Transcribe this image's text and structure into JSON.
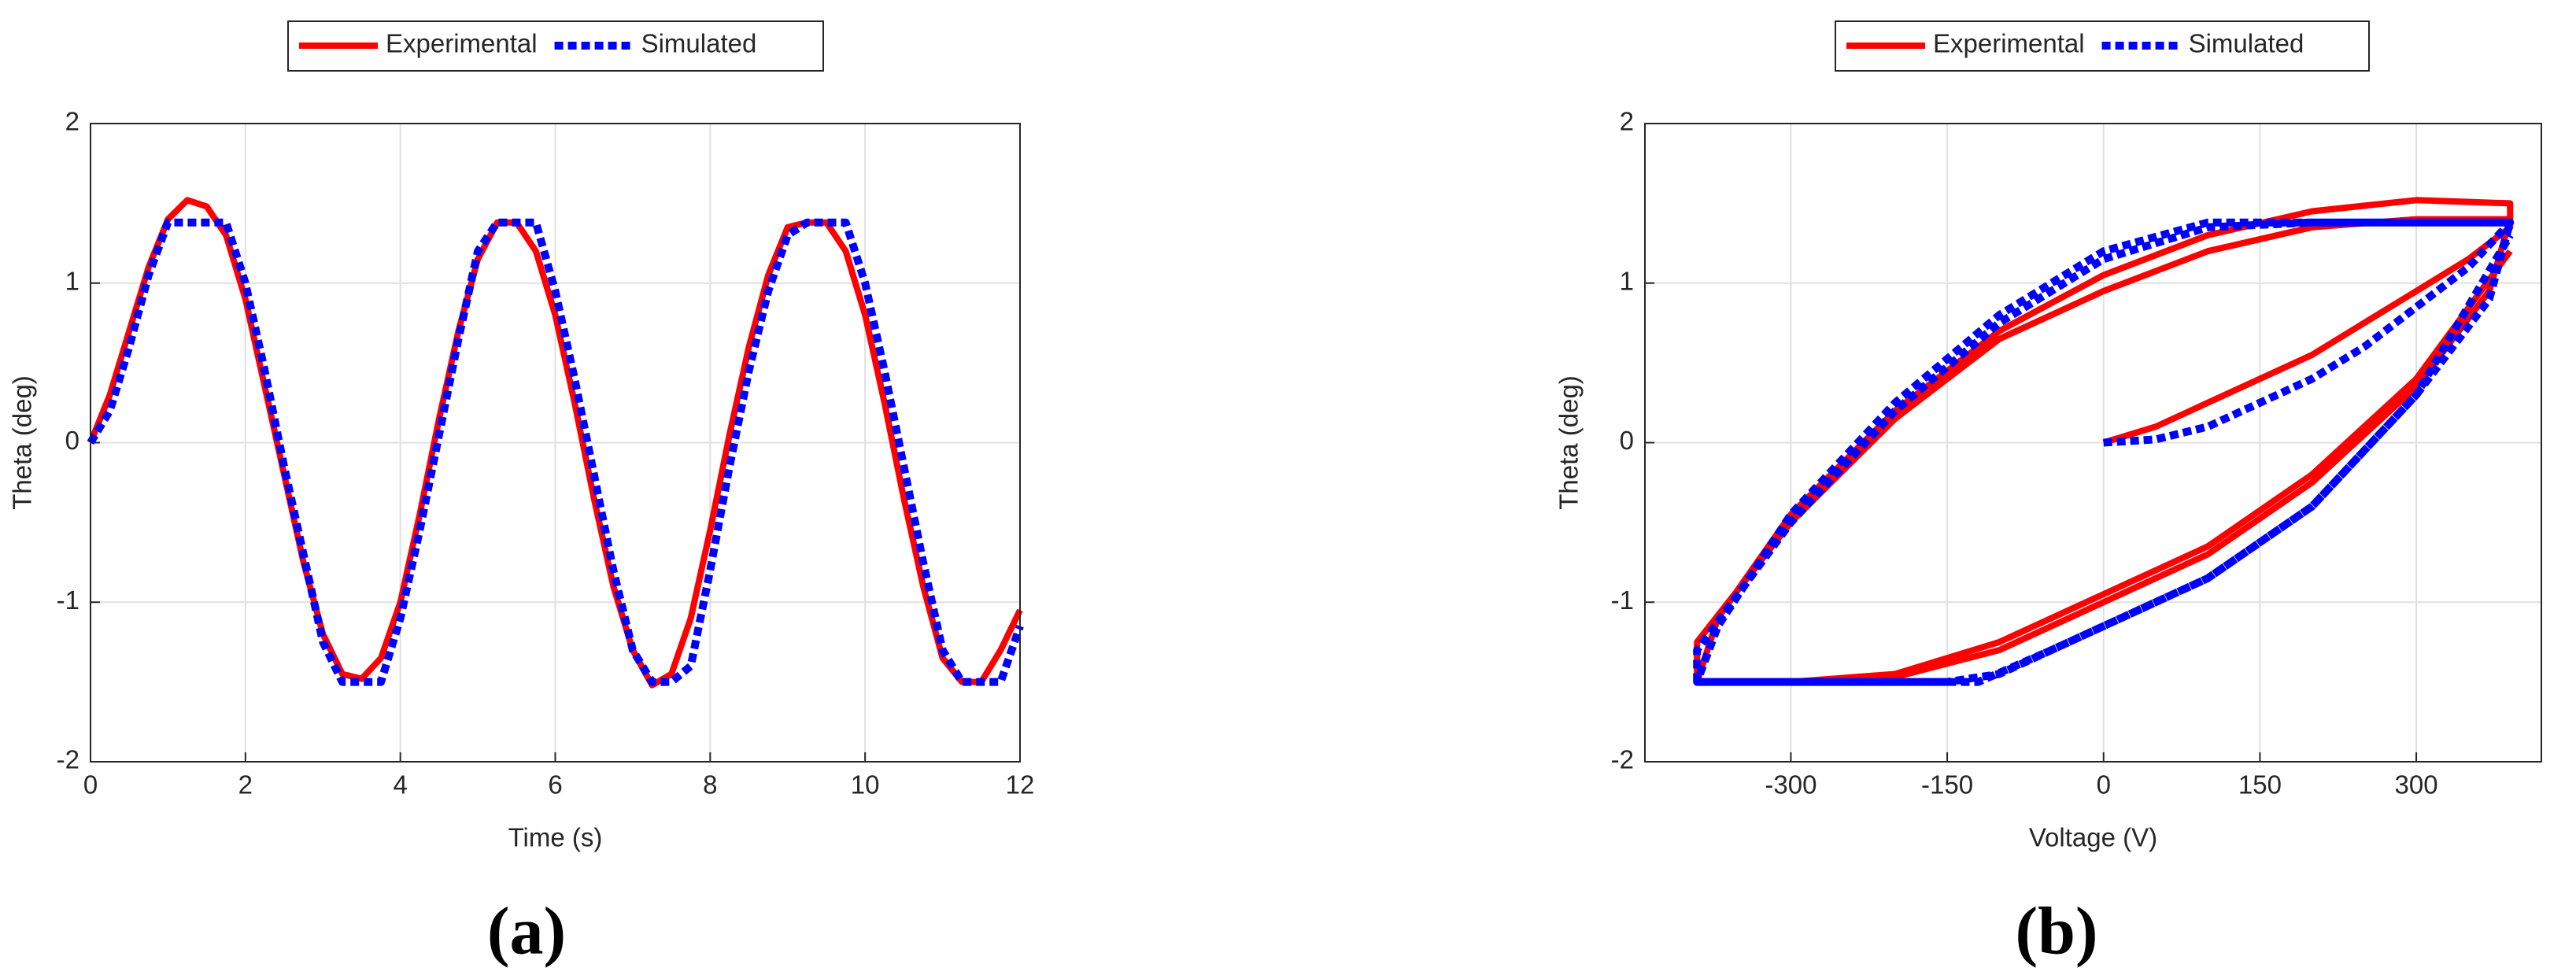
{
  "chart_data": [
    {
      "type": "line",
      "panel_label": "(a)",
      "xlabel": "Time (s)",
      "ylabel": "Theta (deg)",
      "xlim": [
        0,
        12
      ],
      "xticks": [
        0,
        2,
        4,
        6,
        8,
        10,
        12
      ],
      "ylim": [
        -2,
        2
      ],
      "yticks": [
        -2,
        -1,
        0,
        1,
        2
      ],
      "grid": true,
      "legend": "top",
      "x": [
        0,
        0.25,
        0.5,
        0.75,
        1,
        1.25,
        1.5,
        1.75,
        2,
        2.25,
        2.5,
        2.75,
        3,
        3.25,
        3.5,
        3.75,
        4,
        4.25,
        4.5,
        4.75,
        5,
        5.25,
        5.5,
        5.75,
        6,
        6.25,
        6.5,
        6.75,
        7,
        7.25,
        7.5,
        7.75,
        8,
        8.25,
        8.5,
        8.75,
        9,
        9.25,
        9.5,
        9.75,
        10,
        10.25,
        10.5,
        10.75,
        11,
        11.25,
        11.5,
        11.75,
        12
      ],
      "series": [
        {
          "name": "Experimental",
          "color": "#ff0000",
          "linestyle": "solid",
          "values": [
            0,
            0.3,
            0.7,
            1.1,
            1.4,
            1.52,
            1.48,
            1.3,
            0.9,
            0.35,
            -0.2,
            -0.75,
            -1.2,
            -1.45,
            -1.48,
            -1.35,
            -1.0,
            -0.45,
            0.15,
            0.7,
            1.15,
            1.38,
            1.38,
            1.2,
            0.8,
            0.25,
            -0.35,
            -0.9,
            -1.3,
            -1.52,
            -1.45,
            -1.1,
            -0.55,
            0.05,
            0.6,
            1.05,
            1.35,
            1.38,
            1.38,
            1.2,
            0.8,
            0.25,
            -0.35,
            -0.9,
            -1.35,
            -1.5,
            -1.5,
            -1.3,
            -1.05
          ]
        },
        {
          "name": "Simulated",
          "color": "#0000ff",
          "linestyle": "dotted",
          "values": [
            0,
            0.2,
            0.6,
            1.05,
            1.38,
            1.38,
            1.38,
            1.38,
            1.0,
            0.45,
            -0.15,
            -0.7,
            -1.25,
            -1.5,
            -1.5,
            -1.5,
            -1.1,
            -0.55,
            0.05,
            0.65,
            1.2,
            1.38,
            1.38,
            1.38,
            0.95,
            0.4,
            -0.2,
            -0.8,
            -1.3,
            -1.5,
            -1.5,
            -1.4,
            -0.8,
            -0.15,
            0.45,
            0.95,
            1.3,
            1.38,
            1.38,
            1.38,
            1.0,
            0.45,
            -0.15,
            -0.75,
            -1.3,
            -1.5,
            -1.5,
            -1.5,
            -1.15
          ]
        }
      ]
    },
    {
      "type": "line",
      "panel_label": "(b)",
      "xlabel": "Voltage (V)",
      "ylabel": "Theta (deg)",
      "xlim": [
        -440,
        420
      ],
      "xticks": [
        -300,
        -150,
        0,
        150,
        300
      ],
      "ylim": [
        -2,
        2
      ],
      "yticks": [
        -2,
        -1,
        0,
        1,
        2
      ],
      "grid": true,
      "legend": "top",
      "series": [
        {
          "name": "Experimental",
          "color": "#ff0000",
          "linestyle": "solid",
          "x": [
            0,
            50,
            100,
            150,
            200,
            250,
            300,
            350,
            390,
            390,
            300,
            200,
            100,
            0,
            -100,
            -200,
            -300,
            -370,
            -390,
            -300,
            -200,
            -100,
            0,
            100,
            200,
            300,
            370,
            390,
            300,
            200,
            100,
            0,
            -100,
            -200,
            -300,
            -390,
            -390,
            -300,
            -200,
            -100,
            0,
            100,
            200,
            300,
            390
          ],
          "values": [
            0,
            0.1,
            0.25,
            0.4,
            0.55,
            0.75,
            0.95,
            1.15,
            1.35,
            1.5,
            1.52,
            1.45,
            1.3,
            1.05,
            0.7,
            0.2,
            -0.45,
            -1.1,
            -1.5,
            -1.5,
            -1.47,
            -1.3,
            -1.0,
            -0.7,
            -0.25,
            0.35,
            0.95,
            1.4,
            1.4,
            1.35,
            1.2,
            0.95,
            0.65,
            0.15,
            -0.5,
            -1.25,
            -1.5,
            -1.5,
            -1.45,
            -1.25,
            -0.95,
            -0.65,
            -0.2,
            0.4,
            1.2
          ]
        },
        {
          "name": "Simulated",
          "color": "#0000ff",
          "linestyle": "dotted",
          "x": [
            0,
            50,
            100,
            150,
            200,
            250,
            300,
            350,
            390,
            300,
            200,
            100,
            0,
            -100,
            -200,
            -300,
            -370,
            -390,
            -300,
            -200,
            -120,
            -50,
            0,
            100,
            200,
            300,
            370,
            390,
            300,
            200,
            100,
            0,
            -100,
            -200,
            -300,
            -390,
            -390,
            -300,
            -150,
            -100,
            0,
            100,
            200,
            300,
            390
          ],
          "values": [
            0,
            0.02,
            0.1,
            0.25,
            0.4,
            0.6,
            0.85,
            1.1,
            1.38,
            1.38,
            1.38,
            1.38,
            1.2,
            0.8,
            0.25,
            -0.45,
            -1.15,
            -1.5,
            -1.5,
            -1.5,
            -1.5,
            -1.3,
            -1.15,
            -0.85,
            -0.4,
            0.3,
            0.9,
            1.38,
            1.38,
            1.38,
            1.35,
            1.15,
            0.75,
            0.2,
            -0.5,
            -1.3,
            -1.5,
            -1.5,
            -1.5,
            -1.45,
            -1.15,
            -0.85,
            -0.4,
            0.3,
            1.3
          ]
        }
      ]
    }
  ]
}
